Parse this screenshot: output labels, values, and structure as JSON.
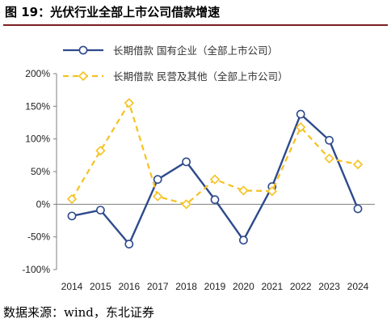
{
  "title": "图 19：光伏行业全部上市公司借款增速",
  "source": "数据来源：wind，东北证券",
  "chart_data": {
    "type": "line",
    "title": "图 19：光伏行业全部上市公司借款增速",
    "xlabel": "",
    "ylabel": "",
    "x": [
      "2014",
      "2015",
      "2016",
      "2017",
      "2018",
      "2019",
      "2020",
      "2021",
      "2022",
      "2023",
      "2024"
    ],
    "y_ticks": [
      "200%",
      "150%",
      "100%",
      "50%",
      "0%",
      "-50%",
      "-100%"
    ],
    "ylim": [
      -100,
      200
    ],
    "y_unit": "%",
    "grid": false,
    "legend_position": "top",
    "series": [
      {
        "name": "长期借款 国有企业（全部上市公司）",
        "color": "#2e4a8c",
        "style": "solid",
        "marker": "circle",
        "values": [
          -18,
          -9,
          -61,
          38,
          65,
          7,
          -55,
          27,
          138,
          98,
          -7
        ]
      },
      {
        "name": "长期借款 民营及其他（全部上市公司）",
        "color": "#f5c220",
        "style": "dashed",
        "marker": "diamond",
        "values": [
          8,
          82,
          155,
          12,
          0,
          38,
          21,
          20,
          118,
          70,
          61
        ]
      }
    ]
  }
}
